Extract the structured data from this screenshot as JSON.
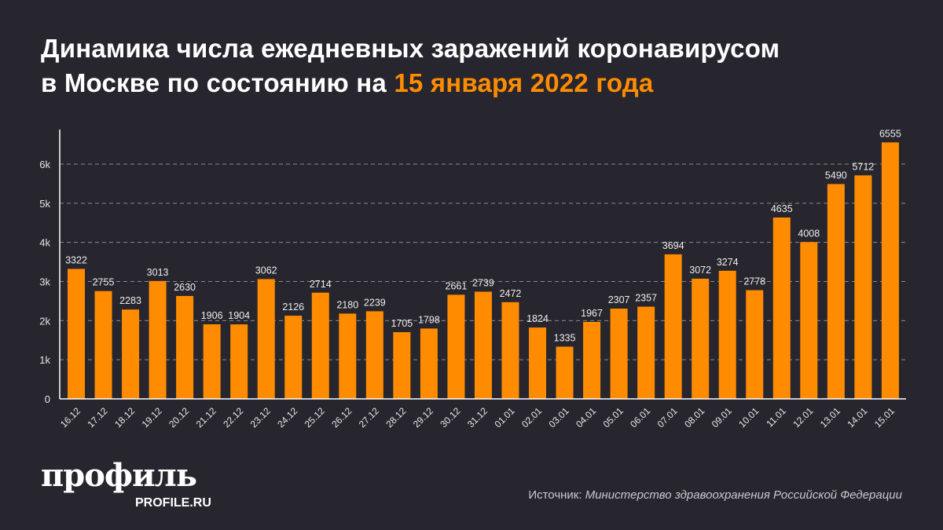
{
  "title": {
    "line1": "Динамика числа ежедневных заражений коронавирусом",
    "line2_prefix": "в Москве по состоянию на ",
    "line2_accent": "15 января 2022 года"
  },
  "colors": {
    "background": "#27262e",
    "bar": "#ff8c00",
    "accent": "#ff8c00",
    "text": "#ffffff"
  },
  "chart_data": {
    "type": "bar",
    "title": "Динамика числа ежедневных заражений коронавирусом в Москве по состоянию на 15 января 2022 года",
    "xlabel": "",
    "ylabel": "",
    "ylim": [
      0,
      6800
    ],
    "yticks": [
      0,
      1000,
      2000,
      3000,
      4000,
      5000,
      6000
    ],
    "ytick_labels": [
      "0",
      "1k",
      "2k",
      "3k",
      "4k",
      "5k",
      "6k"
    ],
    "grid": "horizontal dashed",
    "legend": "none",
    "categories": [
      "16.12",
      "17.12",
      "18.12",
      "19.12",
      "20.12",
      "21.12",
      "22.12",
      "23.12",
      "24.12",
      "25.12",
      "26.12",
      "27.12",
      "28.12",
      "29.12",
      "30.12",
      "31.12",
      "01.01",
      "02.01",
      "03.01",
      "04.01",
      "05.01",
      "06.01",
      "07.01",
      "08.01",
      "09.01",
      "10.01",
      "11.01",
      "12.01",
      "13.01",
      "14.01",
      "15.01"
    ],
    "values": [
      3322,
      2755,
      2283,
      3013,
      2630,
      1906,
      1904,
      3062,
      2126,
      2714,
      2180,
      2239,
      1705,
      1798,
      2661,
      2739,
      2472,
      1824,
      1335,
      1967,
      2307,
      2357,
      3694,
      3072,
      3274,
      2778,
      4635,
      4008,
      5490,
      5712,
      6555
    ]
  },
  "logo": {
    "main": "профиль",
    "sub": "PROFILE.RU"
  },
  "source": {
    "label": "Источник: ",
    "value": "Министерство здравоохранения Российской Федерации"
  }
}
